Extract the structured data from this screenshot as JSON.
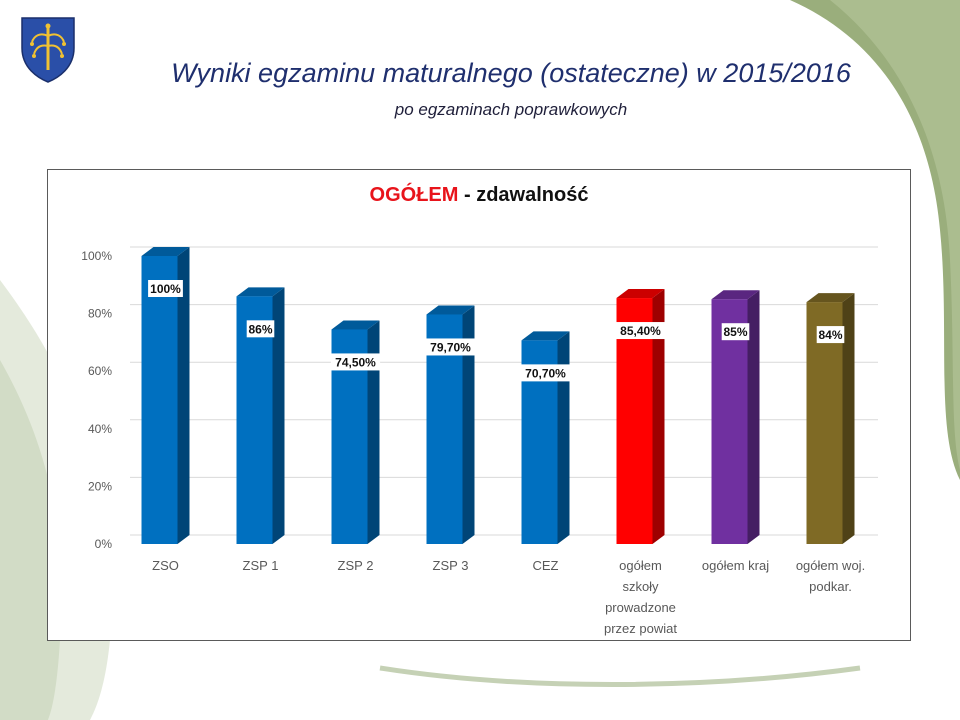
{
  "slide": {
    "title": "Wyniki egzaminu maturalnego (ostateczne) w 2015/2016",
    "subtitle": "po egzaminach poprawkowych"
  },
  "chart_data": {
    "type": "bar",
    "title_accent": "OGÓŁEM",
    "title_rest": " - zdawalność",
    "categories": [
      [
        "ZSO"
      ],
      [
        "ZSP 1"
      ],
      [
        "ZSP 2"
      ],
      [
        "ZSP 3"
      ],
      [
        "CEZ"
      ],
      [
        "ogółem",
        "szkoły",
        "prowadzone",
        "przez powiat"
      ],
      [
        "ogółem kraj"
      ],
      [
        "ogółem woj.",
        "podkar."
      ]
    ],
    "values": [
      100,
      86,
      74.5,
      79.7,
      70.7,
      85.4,
      85,
      84
    ],
    "data_labels": [
      "100%",
      "86%",
      "74,50%",
      "79,70%",
      "70,70%",
      "85,40%",
      "85%",
      "84%"
    ],
    "bar_colors": [
      "#0070c0",
      "#0070c0",
      "#0070c0",
      "#0070c0",
      "#0070c0",
      "#ff0000",
      "#7030a0",
      "#7f6a25"
    ],
    "ylim": [
      0,
      100
    ],
    "yticks": [
      "0%",
      "20%",
      "40%",
      "60%",
      "80%",
      "100%"
    ],
    "grid": true,
    "legend": "none"
  }
}
